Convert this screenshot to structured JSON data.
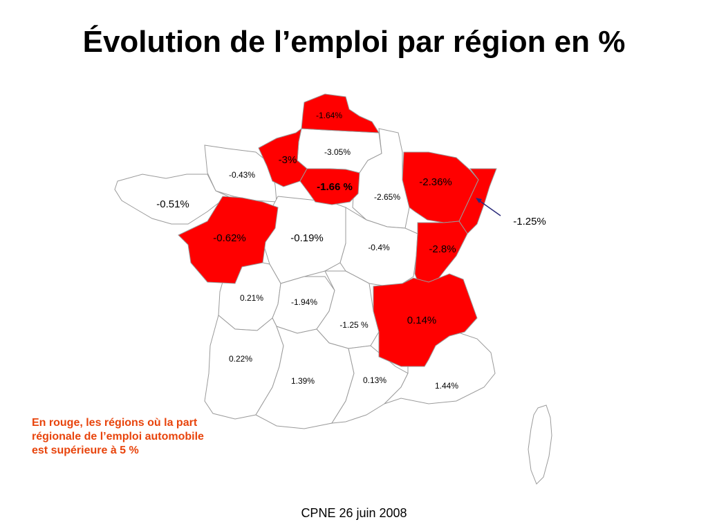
{
  "title": "Évolution de l’emploi par région en %",
  "colors": {
    "highlight": "#ff0000",
    "note_text": "#e8440c",
    "border": "#9a9a9a",
    "arrow": "#2a2a7a"
  },
  "regions": [
    {
      "name": "nord",
      "value": "-1.64%",
      "highlight": true
    },
    {
      "name": "haute-normandie",
      "value": "-3%",
      "highlight": true
    },
    {
      "name": "picardie",
      "value": "-3.05%",
      "highlight": false
    },
    {
      "name": "ile-de-france",
      "value": "-1.66 %",
      "highlight": true
    },
    {
      "name": "basse-normandie",
      "value": "-0.43%",
      "highlight": false
    },
    {
      "name": "bretagne",
      "value": "-0.51%",
      "highlight": false
    },
    {
      "name": "champagne-ardenne",
      "value": "-2.65%",
      "highlight": false
    },
    {
      "name": "lorraine",
      "value": "-2.36%",
      "highlight": true
    },
    {
      "name": "alsace",
      "value": "-1.25%",
      "highlight": true
    },
    {
      "name": "pays-de-la-loire",
      "value": "-0.62%",
      "highlight": true
    },
    {
      "name": "centre",
      "value": "-0.19%",
      "highlight": false
    },
    {
      "name": "bourgogne",
      "value": "-0.4%",
      "highlight": false
    },
    {
      "name": "franche-comte",
      "value": "-2.8%",
      "highlight": true
    },
    {
      "name": "poitou-charentes",
      "value": "0.21%",
      "highlight": false
    },
    {
      "name": "limousin",
      "value": "-1.94%",
      "highlight": false
    },
    {
      "name": "auvergne",
      "value": "-1.25 %",
      "highlight": false
    },
    {
      "name": "rhone-alpes",
      "value": "0.14%",
      "highlight": true
    },
    {
      "name": "aquitaine",
      "value": "0.22%",
      "highlight": false
    },
    {
      "name": "midi-pyrenees",
      "value": "1.39%",
      "highlight": false
    },
    {
      "name": "languedoc-roussillon",
      "value": "0.13%",
      "highlight": false
    },
    {
      "name": "paca",
      "value": "1.44%",
      "highlight": false
    }
  ],
  "note": {
    "line1": "En rouge, les régions où la part",
    "line2": "régionale de l’emploi automobile",
    "line3": "est supérieure à 5 %"
  },
  "footer": "CPNE 26 juin 2008"
}
